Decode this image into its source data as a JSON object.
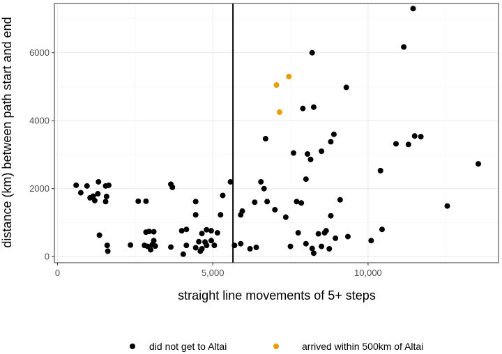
{
  "chart_data": {
    "type": "scatter",
    "title": "",
    "xlabel": "straight line movements of 5+ steps",
    "ylabel": "distance (km) between path start and end",
    "xlim": [
      -100,
      14200
    ],
    "ylim": [
      -180,
      7450
    ],
    "x_ticks": [
      0,
      5000,
      10000
    ],
    "x_tick_labels": [
      "0",
      "5,000",
      "10,000"
    ],
    "y_ticks": [
      0,
      2000,
      4000,
      6000
    ],
    "y_tick_labels": [
      "0",
      "2000",
      "4000",
      "6000"
    ],
    "grid": true,
    "legend_position": "bottom",
    "vline": {
      "x": 5650,
      "color": "#000000"
    },
    "colors": {
      "did not get to Altai": "#000000",
      "arrived within 500km of Altai": "#E69F00"
    },
    "series": [
      {
        "name": "did not get to Altai",
        "color": "#000000",
        "points": [
          [
            600,
            2100
          ],
          [
            750,
            1880
          ],
          [
            950,
            2080
          ],
          [
            1050,
            1730
          ],
          [
            1150,
            1780
          ],
          [
            1200,
            1650
          ],
          [
            1300,
            1850
          ],
          [
            1320,
            2200
          ],
          [
            1550,
            2080
          ],
          [
            1650,
            2100
          ],
          [
            1550,
            1620
          ],
          [
            1580,
            1770
          ],
          [
            1350,
            630
          ],
          [
            1600,
            330
          ],
          [
            1620,
            160
          ],
          [
            2350,
            340
          ],
          [
            2600,
            1630
          ],
          [
            2850,
            1630
          ],
          [
            2800,
            330
          ],
          [
            2850,
            720
          ],
          [
            2950,
            740
          ],
          [
            3100,
            730
          ],
          [
            3050,
            350
          ],
          [
            3100,
            470
          ],
          [
            2900,
            300
          ],
          [
            3000,
            200
          ],
          [
            3150,
            310
          ],
          [
            3650,
            2130
          ],
          [
            3700,
            2040
          ],
          [
            3650,
            280
          ],
          [
            4000,
            760
          ],
          [
            4150,
            800
          ],
          [
            4050,
            70
          ],
          [
            4150,
            330
          ],
          [
            4450,
            1620
          ],
          [
            4450,
            1230
          ],
          [
            4450,
            260
          ],
          [
            4550,
            440
          ],
          [
            4600,
            160
          ],
          [
            4650,
            680
          ],
          [
            4750,
            430
          ],
          [
            4650,
            230
          ],
          [
            4800,
            790
          ],
          [
            4950,
            760
          ],
          [
            4950,
            470
          ],
          [
            4800,
            330
          ],
          [
            5050,
            330
          ],
          [
            5150,
            700
          ],
          [
            5250,
            1230
          ],
          [
            5320,
            1800
          ],
          [
            5570,
            2200
          ],
          [
            5700,
            330
          ],
          [
            5900,
            1230
          ],
          [
            5950,
            1340
          ],
          [
            5900,
            380
          ],
          [
            6200,
            230
          ],
          [
            6350,
            1600
          ],
          [
            6400,
            270
          ],
          [
            6550,
            2200
          ],
          [
            6650,
            2000
          ],
          [
            6700,
            3470
          ],
          [
            6750,
            1620
          ],
          [
            7000,
            1380
          ],
          [
            7350,
            1160
          ],
          [
            7500,
            300
          ],
          [
            7600,
            3050
          ],
          [
            7700,
            1620
          ],
          [
            7750,
            700
          ],
          [
            7850,
            1580
          ],
          [
            7900,
            4360
          ],
          [
            8000,
            380
          ],
          [
            8000,
            2280
          ],
          [
            8050,
            3020
          ],
          [
            8150,
            2860
          ],
          [
            8200,
            6000
          ],
          [
            8250,
            4400
          ],
          [
            8200,
            240
          ],
          [
            8250,
            100
          ],
          [
            8400,
            670
          ],
          [
            8500,
            3100
          ],
          [
            8500,
            300
          ],
          [
            8600,
            700
          ],
          [
            8650,
            760
          ],
          [
            8800,
            1200
          ],
          [
            8800,
            3380
          ],
          [
            8750,
            230
          ],
          [
            8900,
            3600
          ],
          [
            8950,
            540
          ],
          [
            9100,
            1670
          ],
          [
            9300,
            4980
          ],
          [
            9350,
            590
          ],
          [
            10100,
            470
          ],
          [
            10400,
            2530
          ],
          [
            10450,
            800
          ],
          [
            10900,
            3320
          ],
          [
            11150,
            6170
          ],
          [
            11300,
            3300
          ],
          [
            11450,
            7300
          ],
          [
            11500,
            3550
          ],
          [
            11700,
            3530
          ],
          [
            12550,
            1490
          ],
          [
            13550,
            2730
          ]
        ]
      },
      {
        "name": "arrived within 500km of Altai",
        "color": "#E69F00",
        "points": [
          [
            7050,
            5050
          ],
          [
            7450,
            5300
          ],
          [
            7150,
            4250
          ]
        ]
      }
    ]
  }
}
